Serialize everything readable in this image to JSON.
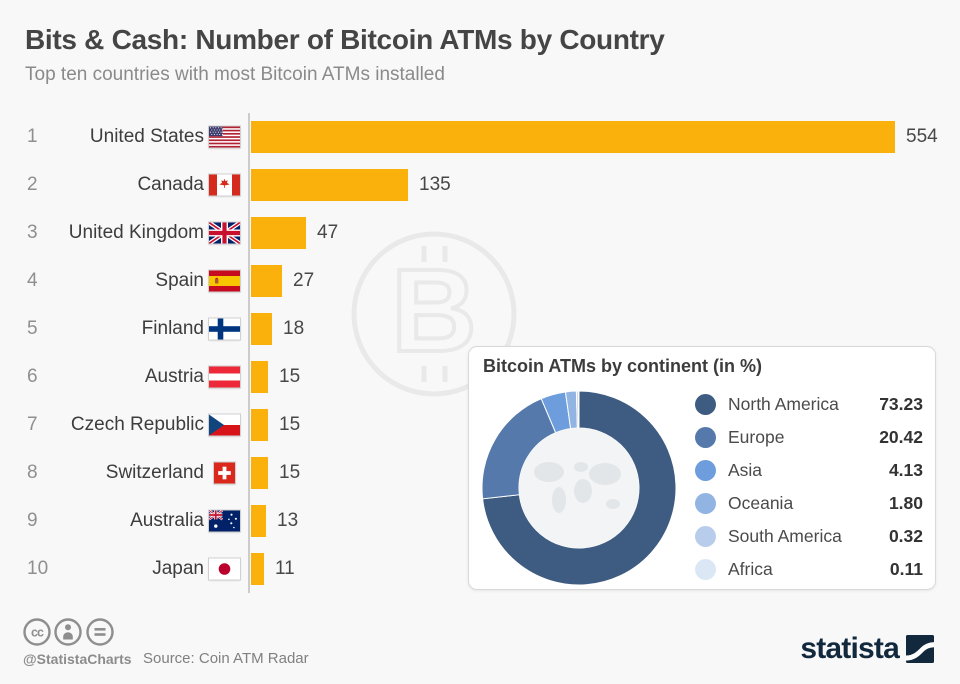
{
  "header": {
    "title": "Bits & Cash: Number of Bitcoin ATMs by Country",
    "subtitle": "Top ten countries with most Bitcoin ATMs installed"
  },
  "chart_data": [
    {
      "type": "bar",
      "orientation": "horizontal",
      "categories": [
        "United States",
        "Canada",
        "United Kingdom",
        "Spain",
        "Finland",
        "Austria",
        "Czech Republic",
        "Switzerland",
        "Australia",
        "Japan"
      ],
      "ranks": [
        1,
        2,
        3,
        4,
        5,
        6,
        7,
        8,
        9,
        10
      ],
      "values": [
        554,
        135,
        47,
        27,
        18,
        15,
        15,
        15,
        13,
        11
      ],
      "flags": [
        "us",
        "ca",
        "gb",
        "es",
        "fi",
        "at",
        "cz",
        "ch",
        "au",
        "jp"
      ],
      "bar_color": "#FBB10B",
      "xlim": [
        0,
        554
      ],
      "grid": false
    },
    {
      "type": "pie",
      "subtype": "donut",
      "title": "Bitcoin ATMs by continent (in %)",
      "labels": [
        "North America",
        "Europe",
        "Asia",
        "Oceania",
        "South America",
        "Africa"
      ],
      "values": [
        73.23,
        20.42,
        4.13,
        1.8,
        0.32,
        0.11
      ],
      "colors": [
        "#3E5C82",
        "#5579AB",
        "#6D9DDC",
        "#92B4E2",
        "#B8CDEC",
        "#DCE7F6"
      ],
      "legend_position": "right"
    }
  ],
  "watermark": {
    "icon": "bitcoin-icon",
    "color": "#E9E9E9"
  },
  "footer": {
    "license_icons": [
      "cc-icon",
      "attribution-icon",
      "no-derivatives-icon"
    ],
    "handle": "@StatistaCharts",
    "source": "Source: Coin ATM Radar",
    "brand": "statista",
    "brand_color": "#12293D"
  },
  "colors": {
    "background": "#F8F8F8",
    "axis": "#CCCCCC",
    "text_dark": "#3D3D3D",
    "text_muted": "#8A8A8A"
  }
}
